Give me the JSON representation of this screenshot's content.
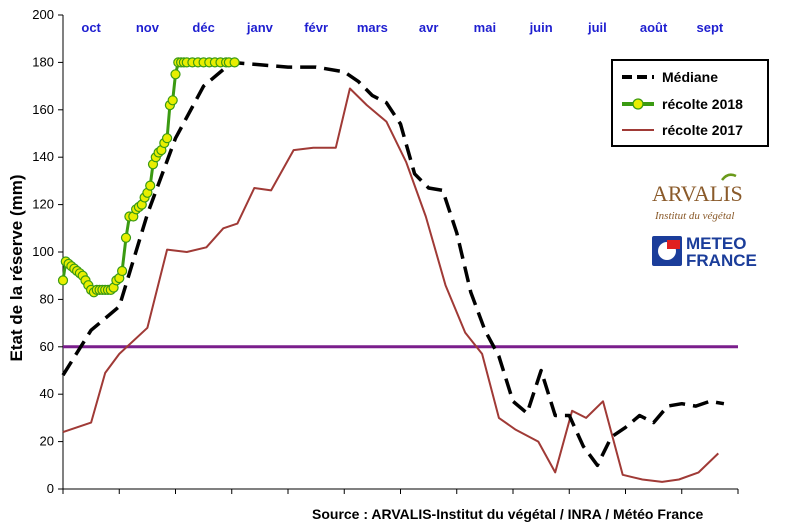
{
  "chart_data": {
    "type": "line",
    "ylabel": "Etat de la réserve (mm)",
    "ylim": [
      0,
      200
    ],
    "yticks": [
      0,
      20,
      40,
      60,
      80,
      100,
      120,
      140,
      160,
      180,
      200
    ],
    "x_months": [
      "oct",
      "nov",
      "déc",
      "janv",
      "févr",
      "mars",
      "avr",
      "mai",
      "juin",
      "juil",
      "août",
      "sept"
    ],
    "xlim": [
      0,
      12
    ],
    "grid": false,
    "legend_position": "top-right",
    "reference_line": {
      "value": 60,
      "color": "#7a1e8c"
    },
    "series": [
      {
        "name": "Médiane",
        "color": "#000000",
        "style": "dashed",
        "x": [
          0.0,
          0.5,
          1.0,
          1.5,
          2.0,
          2.5,
          3.0,
          3.5,
          4.0,
          4.5,
          5.0,
          5.25,
          5.5,
          5.75,
          6.0,
          6.25,
          6.5,
          6.75,
          7.0,
          7.25,
          7.5,
          7.75,
          8.0,
          8.25,
          8.5,
          8.75,
          9.0,
          9.25,
          9.5,
          9.75,
          10.0,
          10.25,
          10.5,
          10.75,
          11.0,
          11.25,
          11.5,
          11.75
        ],
        "y": [
          48,
          67,
          77,
          116,
          148,
          170,
          180,
          179,
          178,
          178,
          176,
          172,
          166,
          163,
          154,
          133,
          127,
          126,
          108,
          83,
          67,
          56,
          37,
          32,
          50,
          31,
          31,
          18,
          10,
          22,
          26,
          31,
          28,
          35,
          36,
          35,
          37,
          36
        ]
      },
      {
        "name": "récolte 2018",
        "color": "#3a9a12",
        "marker_color": "#e8ee00",
        "x": [
          0.0,
          0.05,
          0.1,
          0.15,
          0.2,
          0.25,
          0.3,
          0.35,
          0.4,
          0.45,
          0.5,
          0.55,
          0.6,
          0.65,
          0.7,
          0.75,
          0.8,
          0.85,
          0.9,
          0.95,
          1.0,
          1.05,
          1.12,
          1.18,
          1.25,
          1.3,
          1.35,
          1.4,
          1.45,
          1.5,
          1.55,
          1.6,
          1.65,
          1.7,
          1.75,
          1.8,
          1.85,
          1.9,
          1.95,
          2.0,
          2.05,
          2.1,
          2.15,
          2.2,
          2.3,
          2.4,
          2.5,
          2.6,
          2.7,
          2.8,
          2.9,
          2.95,
          3.05
        ],
        "y": [
          88,
          96,
          95,
          94,
          93,
          92,
          91,
          90,
          88,
          86,
          84,
          83,
          84,
          84,
          84,
          84,
          84,
          84,
          85,
          88,
          89,
          92,
          106,
          115,
          115,
          118,
          119,
          120,
          123,
          125,
          128,
          137,
          140,
          142,
          143,
          146,
          148,
          162,
          164,
          175,
          180,
          180,
          180,
          180,
          180,
          180,
          180,
          180,
          180,
          180,
          180,
          180,
          180
        ]
      },
      {
        "name": "récolte 2017",
        "color": "#a03a36",
        "x": [
          0.0,
          0.5,
          0.75,
          1.0,
          1.5,
          1.85,
          2.2,
          2.55,
          2.85,
          3.1,
          3.4,
          3.7,
          4.1,
          4.45,
          4.85,
          5.1,
          5.4,
          5.75,
          6.1,
          6.45,
          6.8,
          7.15,
          7.45,
          7.75,
          8.05,
          8.45,
          8.75,
          9.05,
          9.3,
          9.6,
          9.95,
          10.3,
          10.65,
          10.95,
          11.3,
          11.65
        ],
        "y": [
          24,
          28,
          49,
          57,
          68,
          101,
          100,
          102,
          110,
          112,
          127,
          126,
          143,
          144,
          144,
          169,
          162,
          155,
          138,
          115,
          86,
          66,
          57,
          30,
          25,
          20,
          7,
          33,
          30,
          37,
          6,
          4,
          3,
          4,
          7,
          15
        ]
      }
    ]
  },
  "source": "Source : ARVALIS-Institut du végétal / INRA / Météo France",
  "logos": {
    "arvalis_word": "ARVALIS",
    "arvalis_sub": "Institut du végétal",
    "meteo_line1": "METEO",
    "meteo_line2": "FRANCE"
  }
}
